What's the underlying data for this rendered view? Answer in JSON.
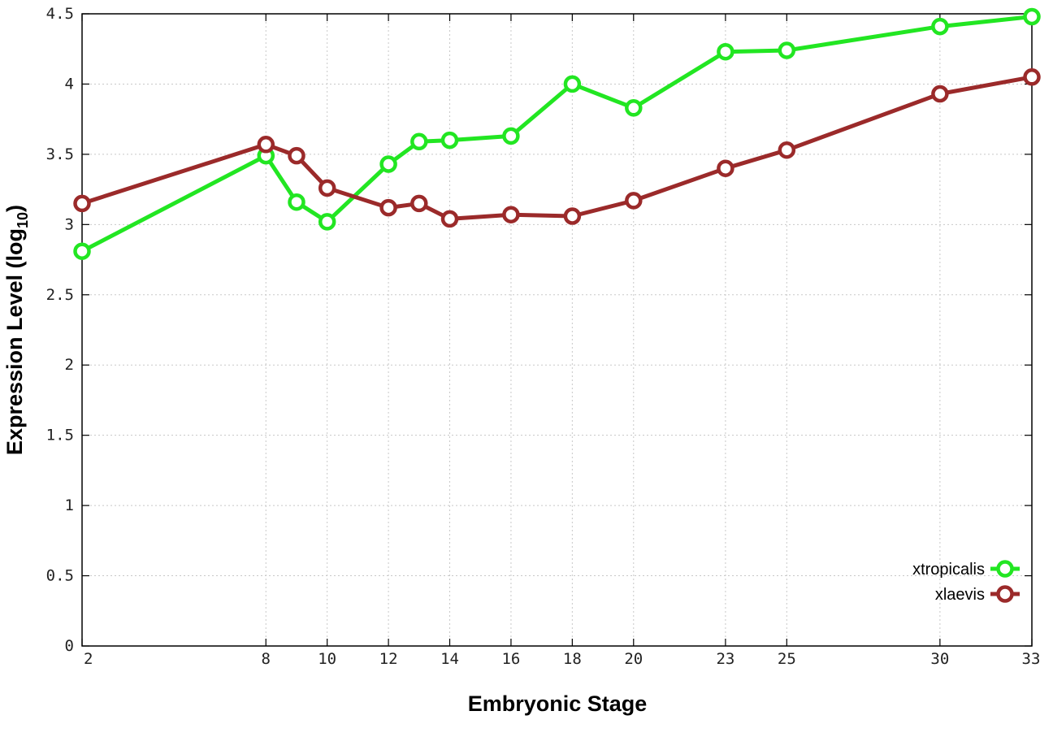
{
  "chart_data": {
    "type": "line",
    "xlabel": "Embryonic Stage",
    "ylabel_main": "Expression Level (log",
    "ylabel_sub": "10",
    "ylabel_close": ")",
    "x": [
      2,
      8,
      9,
      10,
      12,
      13,
      14,
      16,
      18,
      20,
      23,
      25,
      30,
      33
    ],
    "x_tick_labels": [
      "2",
      "8",
      "10",
      "12",
      "14",
      "16",
      "18",
      "20",
      "23",
      "25",
      "30",
      "33"
    ],
    "x_tick_values": [
      2,
      8,
      10,
      12,
      14,
      16,
      18,
      20,
      23,
      25,
      30,
      33
    ],
    "xlim": [
      2,
      33
    ],
    "ylim": [
      0,
      4.5
    ],
    "y_tick_values": [
      0,
      0.5,
      1,
      1.5,
      2,
      2.5,
      3,
      3.5,
      4,
      4.5
    ],
    "y_tick_labels": [
      "0",
      "0.5",
      "1",
      "1.5",
      "2",
      "2.5",
      "3",
      "3.5",
      "4",
      "4.5"
    ],
    "grid": true,
    "legend_position": "bottom-right",
    "series": [
      {
        "name": "xtropicalis",
        "color": "#22e622",
        "values": [
          2.81,
          3.49,
          3.16,
          3.02,
          3.43,
          3.59,
          3.6,
          3.63,
          4.0,
          3.83,
          4.23,
          4.24,
          4.41,
          4.48
        ]
      },
      {
        "name": "xlaevis",
        "color": "#9b2a2a",
        "values": [
          3.15,
          3.57,
          3.49,
          3.26,
          3.12,
          3.15,
          3.04,
          3.07,
          3.06,
          3.17,
          3.4,
          3.53,
          3.93,
          4.05
        ]
      }
    ]
  }
}
